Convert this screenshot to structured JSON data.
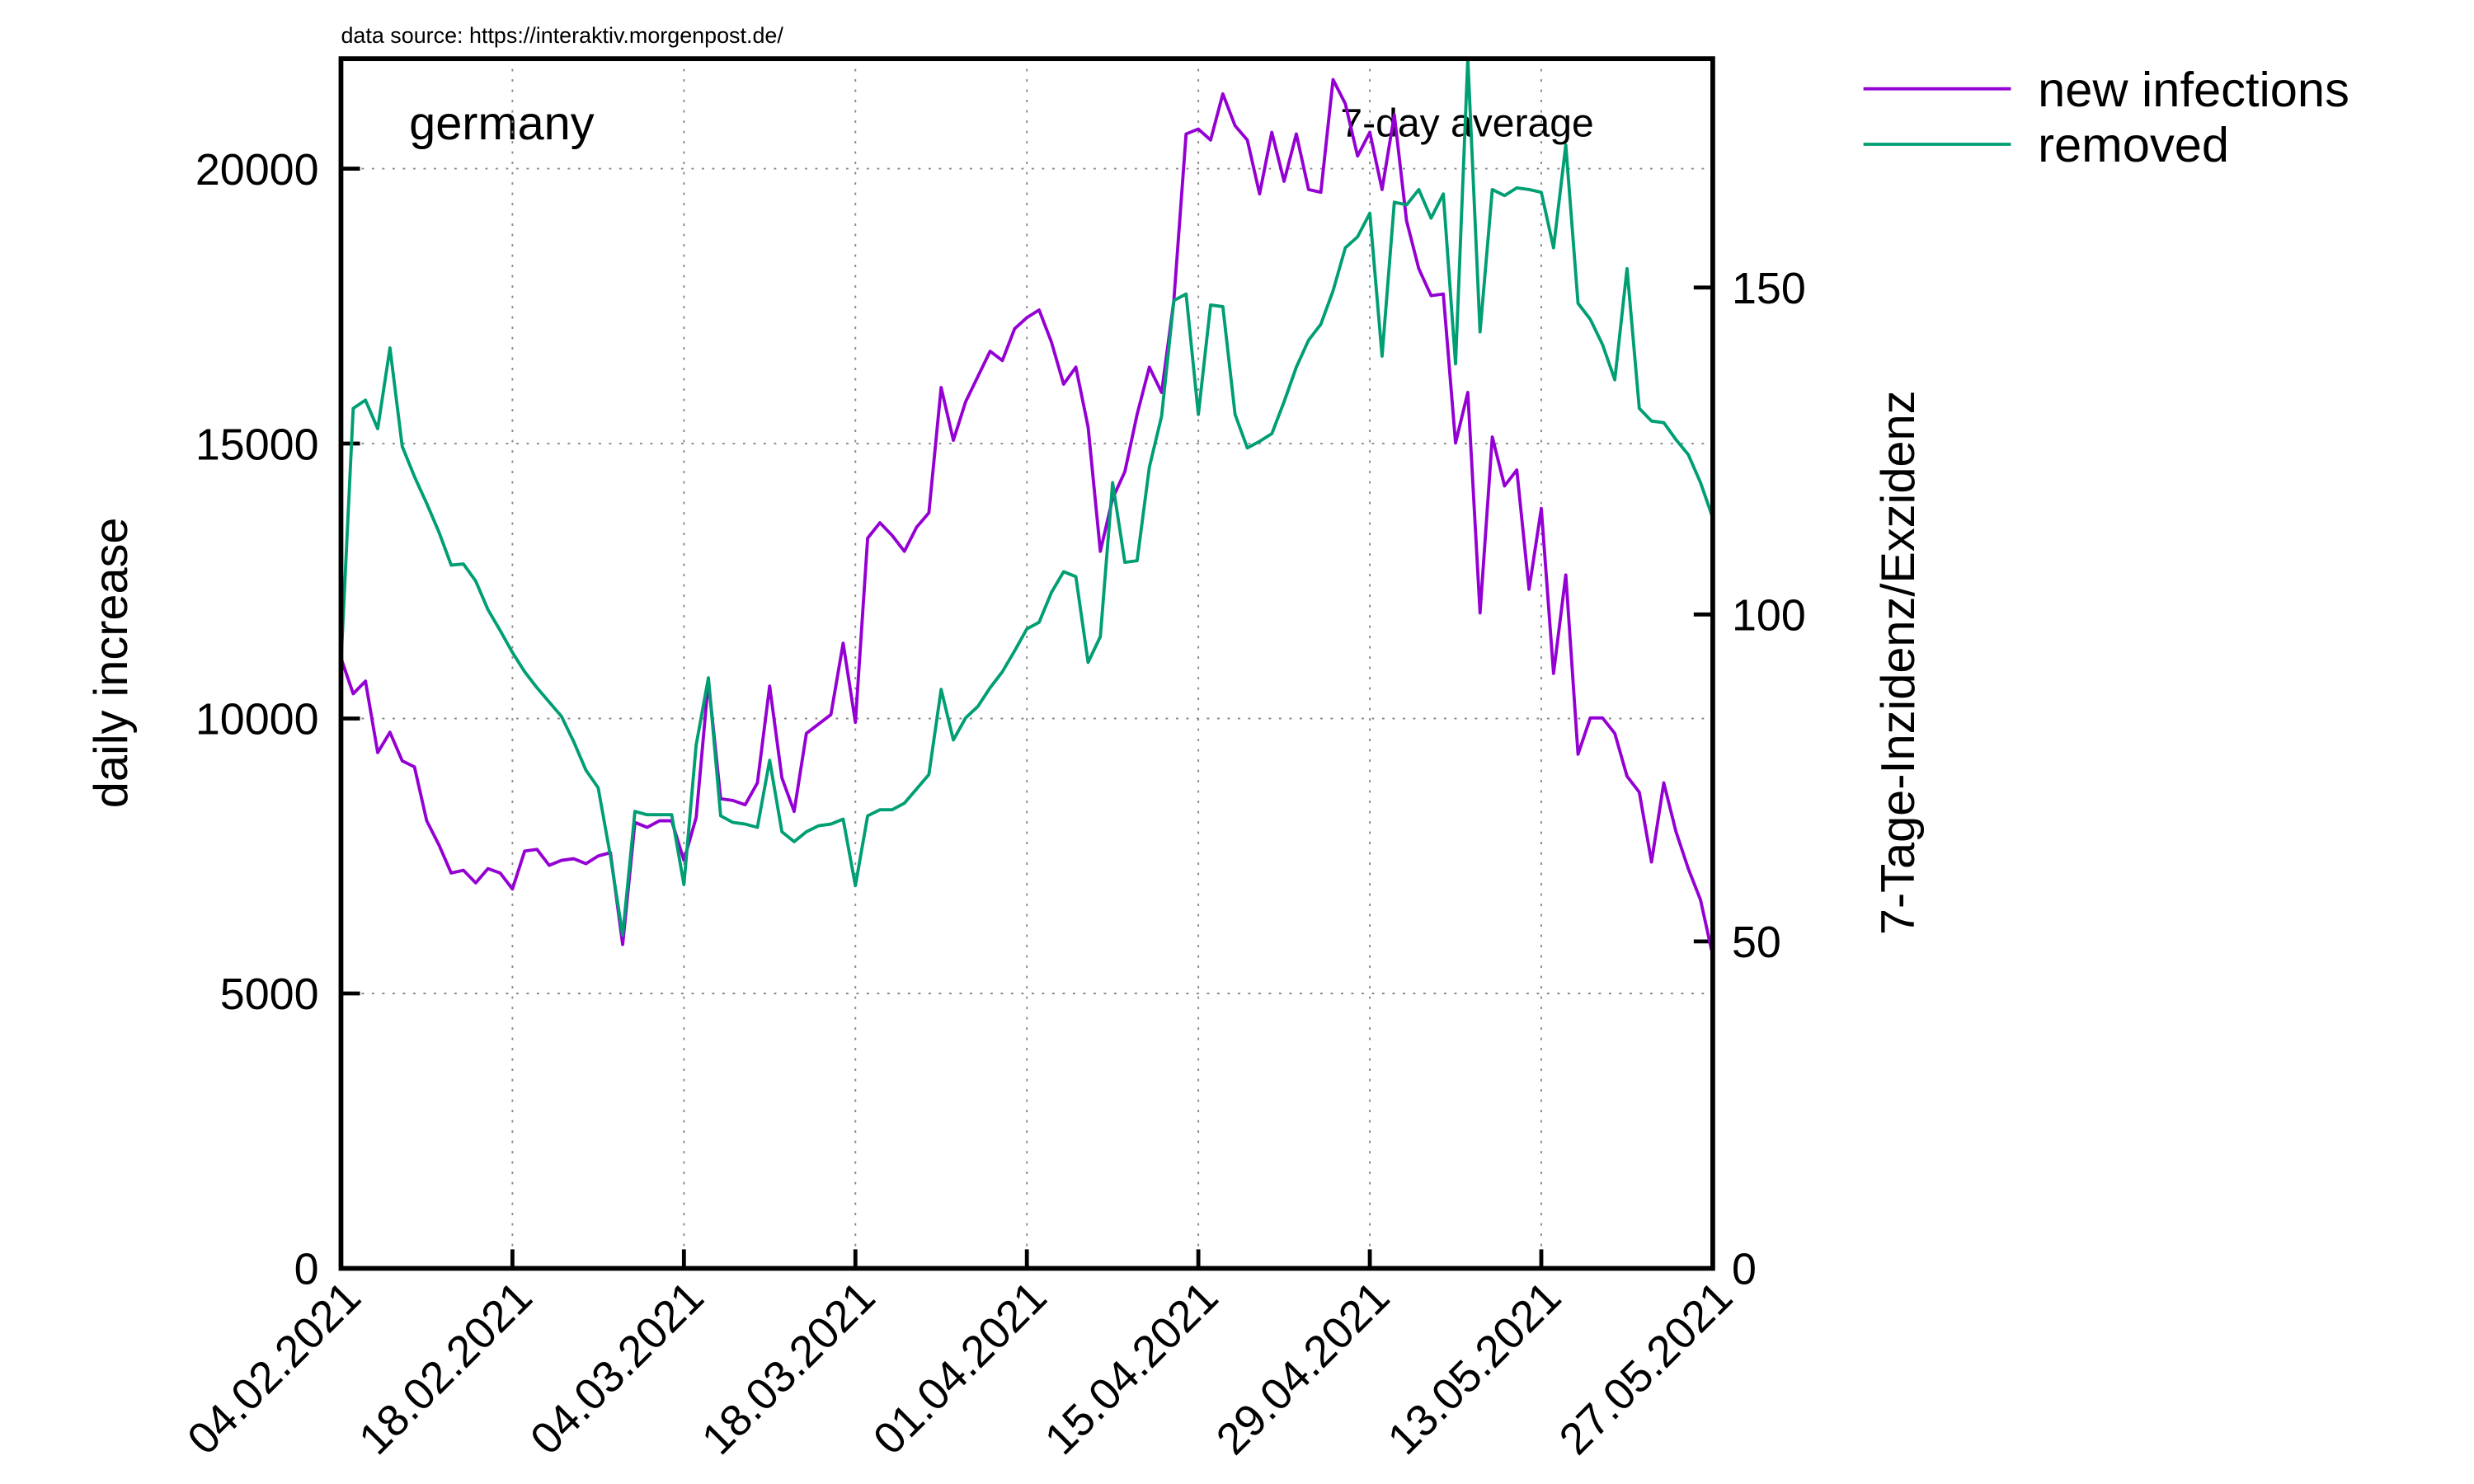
{
  "chart_data": {
    "type": "line",
    "source": "data source: https://interaktiv.morgenpost.de/",
    "region": "germany",
    "annotation": "7-day average",
    "ylabel": "daily increase",
    "y2label": "7-Tage-Inzidenz/Exzidenz",
    "grid": true,
    "legend": "outside top right",
    "x": [
      "04.02.2021",
      "05.02.2021",
      "06.02.2021",
      "07.02.2021",
      "08.02.2021",
      "09.02.2021",
      "10.02.2021",
      "11.02.2021",
      "12.02.2021",
      "13.02.2021",
      "14.02.2021",
      "15.02.2021",
      "16.02.2021",
      "17.02.2021",
      "18.02.2021",
      "19.02.2021",
      "20.02.2021",
      "21.02.2021",
      "22.02.2021",
      "23.02.2021",
      "24.02.2021",
      "25.02.2021",
      "26.02.2021",
      "27.02.2021",
      "28.02.2021",
      "01.03.2021",
      "02.03.2021",
      "03.03.2021",
      "04.03.2021",
      "05.03.2021",
      "06.03.2021",
      "07.03.2021",
      "08.03.2021",
      "09.03.2021",
      "10.03.2021",
      "11.03.2021",
      "12.03.2021",
      "13.03.2021",
      "14.03.2021",
      "15.03.2021",
      "16.03.2021",
      "17.03.2021",
      "18.03.2021",
      "19.03.2021",
      "20.03.2021",
      "21.03.2021",
      "22.03.2021",
      "23.03.2021",
      "24.03.2021",
      "25.03.2021",
      "26.03.2021",
      "27.03.2021",
      "28.03.2021",
      "29.03.2021",
      "30.03.2021",
      "31.03.2021",
      "01.04.2021",
      "02.04.2021",
      "03.04.2021",
      "04.04.2021",
      "05.04.2021",
      "06.04.2021",
      "07.04.2021",
      "08.04.2021",
      "09.04.2021",
      "10.04.2021",
      "11.04.2021",
      "12.04.2021",
      "13.04.2021",
      "14.04.2021",
      "15.04.2021",
      "16.04.2021",
      "17.04.2021",
      "18.04.2021",
      "19.04.2021",
      "20.04.2021",
      "21.04.2021",
      "22.04.2021",
      "23.04.2021",
      "24.04.2021",
      "25.04.2021",
      "26.04.2021",
      "27.04.2021",
      "28.04.2021",
      "29.04.2021",
      "30.04.2021",
      "01.05.2021",
      "02.05.2021",
      "03.05.2021",
      "04.05.2021",
      "05.05.2021",
      "06.05.2021",
      "07.05.2021",
      "08.05.2021",
      "09.05.2021",
      "10.05.2021",
      "11.05.2021",
      "12.05.2021",
      "13.05.2021",
      "14.05.2021",
      "15.05.2021",
      "16.05.2021",
      "17.05.2021",
      "18.05.2021",
      "19.05.2021",
      "20.05.2021",
      "21.05.2021",
      "22.05.2021",
      "23.05.2021",
      "24.05.2021",
      "25.05.2021",
      "26.05.2021",
      "27.05.2021"
    ],
    "series": [
      {
        "name": "new infections",
        "color": "#9400d3",
        "values": [
          11100,
          10450,
          10680,
          9380,
          9750,
          9230,
          9120,
          8140,
          7700,
          7190,
          7240,
          7010,
          7270,
          7190,
          6900,
          7590,
          7620,
          7330,
          7420,
          7450,
          7360,
          7500,
          7560,
          5890,
          8110,
          8020,
          8140,
          8140,
          7420,
          8200,
          10680,
          8540,
          8510,
          8430,
          8830,
          10590,
          8920,
          8310,
          9730,
          9900,
          10070,
          11370,
          9930,
          13280,
          13560,
          13330,
          13040,
          13480,
          13740,
          16020,
          15060,
          15760,
          16220,
          16680,
          16510,
          17090,
          17290,
          17430,
          16850,
          16080,
          16390,
          15300,
          13040,
          14000,
          14490,
          15530,
          16390,
          15930,
          17600,
          20630,
          20720,
          20520,
          21360,
          20780,
          20520,
          19540,
          20660,
          19770,
          20630,
          19620,
          19570,
          21620,
          21180,
          20230,
          20660,
          19620,
          20980,
          19050,
          18180,
          17690,
          17720,
          15010,
          15930,
          11920,
          15120,
          14230,
          14520,
          12350,
          13820,
          10820,
          12610,
          9350,
          10010,
          10010,
          9730,
          8950,
          8660,
          7390,
          8830,
          7940,
          7270,
          6700,
          5690
        ]
      },
      {
        "name": "removed",
        "color": "#009e73",
        "values": [
          11000,
          15640,
          15790,
          15270,
          16740,
          14950,
          14400,
          13910,
          13390,
          12790,
          12810,
          12500,
          11980,
          11600,
          11200,
          10850,
          10560,
          10300,
          10040,
          9580,
          9060,
          8740,
          7500,
          6060,
          8310,
          8250,
          8250,
          8250,
          6980,
          9520,
          10740,
          8230,
          8110,
          8080,
          8020,
          9240,
          7940,
          7760,
          7940,
          8050,
          8080,
          8170,
          6960,
          8230,
          8340,
          8340,
          8460,
          8720,
          8980,
          10530,
          9610,
          10010,
          10220,
          10560,
          10850,
          11230,
          11630,
          11750,
          12290,
          12670,
          12580,
          11020,
          11490,
          14290,
          12840,
          12870,
          14570,
          15500,
          17600,
          17720,
          15530,
          17520,
          17490,
          15530,
          14920,
          15040,
          15180,
          15760,
          16390,
          16880,
          17170,
          17780,
          18560,
          18760,
          19190,
          16590,
          19390,
          19340,
          19620,
          19100,
          19540,
          16450,
          22000,
          17030,
          19620,
          19510,
          19650,
          19620,
          19570,
          18560,
          20430,
          17550,
          17260,
          16800,
          16160,
          18180,
          15640,
          15410,
          15380,
          15070,
          14800,
          14290,
          13650
        ]
      }
    ],
    "xlim": [
      "04.02.2021",
      "27.05.2021"
    ],
    "xticks": [
      "04.02.2021",
      "18.02.2021",
      "04.03.2021",
      "18.03.2021",
      "01.04.2021",
      "15.04.2021",
      "29.04.2021",
      "13.05.2021",
      "27.05.2021"
    ],
    "ylim": [
      0,
      22000
    ],
    "yticks": [
      0,
      5000,
      10000,
      15000,
      20000
    ],
    "y2lim": [
      0,
      185
    ],
    "y2ticks": [
      0,
      50,
      100,
      150
    ]
  }
}
